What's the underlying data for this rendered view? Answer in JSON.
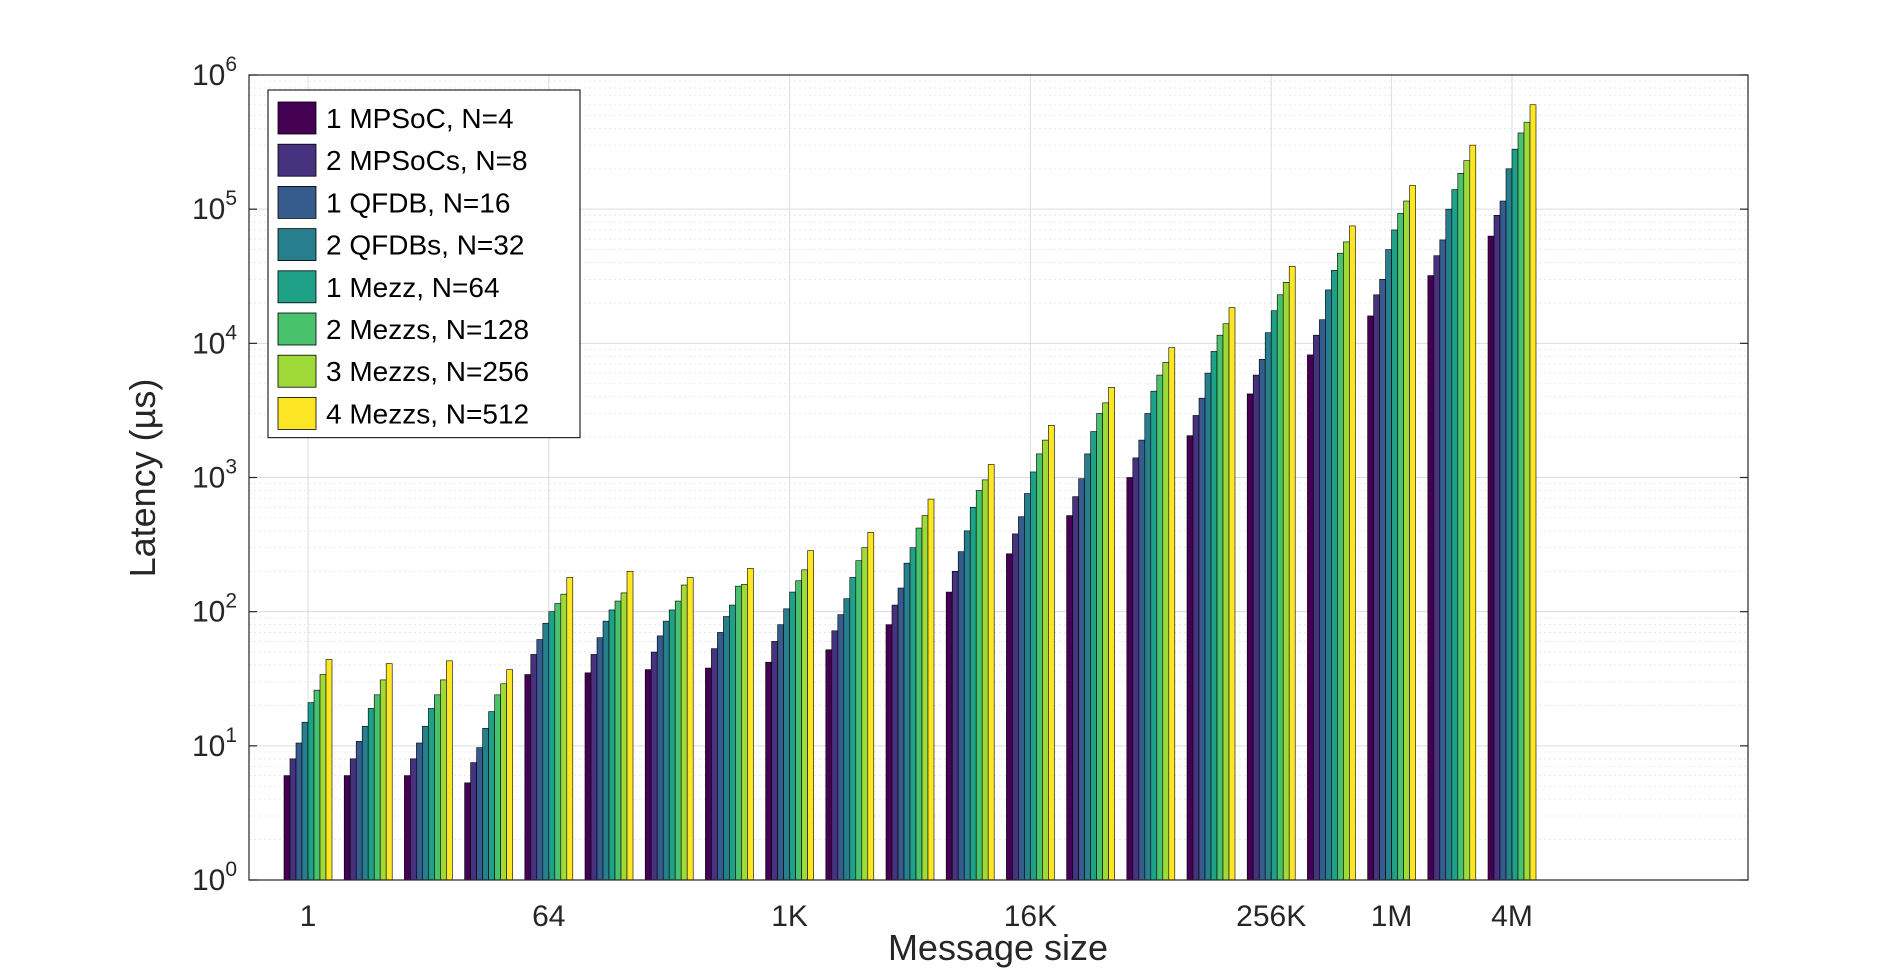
{
  "chart_data": {
    "type": "bar",
    "title": "",
    "xlabel": "Message size",
    "ylabel": "Latency (µs)",
    "y_scale": "log",
    "ylim": [
      1,
      1000000
    ],
    "y_tick_values": [
      1,
      10,
      100,
      1000,
      10000,
      100000,
      1000000
    ],
    "y_tick_exponents": [
      "0",
      "1",
      "2",
      "3",
      "4",
      "5",
      "6"
    ],
    "y_tick_base": "10",
    "grid": true,
    "legend_position": "top-left",
    "categories": [
      "1",
      "",
      "",
      "",
      "64",
      "",
      "",
      "",
      "1K",
      "",
      "",
      "",
      "16K",
      "",
      "",
      "",
      "256K",
      "",
      "1M",
      "",
      "4M"
    ],
    "series": [
      {
        "name": "1 MPSoC, N=4",
        "color": "#440154",
        "values": [
          6,
          6,
          6,
          5.3,
          34,
          35,
          37,
          38,
          42,
          52,
          80,
          140,
          270,
          520,
          1000,
          2050,
          4200,
          8200,
          16000,
          32000,
          63000
        ]
      },
      {
        "name": "2 MPSoCs, N=8",
        "color": "#46327e",
        "values": [
          8,
          8,
          8,
          7.5,
          48,
          48,
          50,
          53,
          60,
          72,
          112,
          200,
          380,
          720,
          1400,
          2900,
          5800,
          11500,
          23000,
          45000,
          90000
        ]
      },
      {
        "name": "1 QFDB, N=16",
        "color": "#365c8d",
        "values": [
          10.5,
          10.8,
          10.5,
          9.7,
          62,
          64,
          66,
          70,
          80,
          95,
          150,
          280,
          510,
          980,
          1900,
          3900,
          7600,
          15000,
          30000,
          59000,
          115000
        ]
      },
      {
        "name": "2 QFDBs, N=32",
        "color": "#277f8e",
        "values": [
          15,
          14,
          14,
          13.5,
          82,
          85,
          85,
          92,
          105,
          125,
          230,
          400,
          760,
          1500,
          3000,
          6000,
          12000,
          25000,
          50000,
          100000,
          200000
        ]
      },
      {
        "name": "1 Mezz, N=64",
        "color": "#1fa187",
        "values": [
          21,
          19,
          19,
          18,
          100,
          103,
          103,
          112,
          140,
          180,
          300,
          600,
          1100,
          2200,
          4400,
          8700,
          17500,
          35000,
          70000,
          140000,
          280000
        ]
      },
      {
        "name": "2 Mezzs, N=128",
        "color": "#4ac16d",
        "values": [
          26,
          24,
          24,
          24,
          115,
          120,
          120,
          155,
          170,
          240,
          420,
          800,
          1500,
          3000,
          5800,
          11500,
          23000,
          47000,
          93000,
          185000,
          370000
        ]
      },
      {
        "name": "3 Mezzs, N=256",
        "color": "#a0da39",
        "values": [
          34,
          31,
          31,
          29,
          135,
          138,
          158,
          160,
          205,
          300,
          520,
          960,
          1900,
          3600,
          7200,
          14000,
          28500,
          57000,
          115000,
          230000,
          445000
        ]
      },
      {
        "name": "4 Mezzs, N=512",
        "color": "#fde725",
        "values": [
          44,
          41,
          43,
          37,
          180,
          200,
          180,
          210,
          285,
          390,
          690,
          1250,
          2450,
          4700,
          9300,
          18500,
          37500,
          75000,
          150000,
          300000,
          600000
        ]
      }
    ]
  }
}
